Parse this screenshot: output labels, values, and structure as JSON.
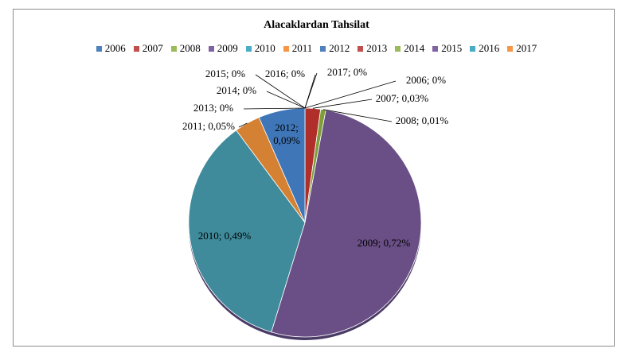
{
  "chart_data": {
    "type": "pie",
    "title": "Alacaklardan Tahsilat",
    "legend_position": "top",
    "categories": [
      "2006",
      "2007",
      "2008",
      "2009",
      "2010",
      "2011",
      "2012",
      "2013",
      "2014",
      "2015",
      "2016",
      "2017"
    ],
    "values": [
      0,
      0.03,
      0.01,
      0.72,
      0.49,
      0.05,
      0.09,
      0,
      0,
      0,
      0,
      0
    ],
    "value_labels": [
      "0%",
      "0,03%",
      "0,01%",
      "0,72%",
      "0,49%",
      "0,05%",
      "0,09%",
      "0%",
      "0%",
      "0%",
      "0%",
      "0%"
    ],
    "data_labels": [
      "2006; 0%",
      "2007; 0,03%",
      "2008; 0,01%",
      "2009; 0,72%",
      "2010; 0,49%",
      "2011; 0,05%",
      "2012; 0,09%",
      "2013; 0%",
      "2014; 0%",
      "2015; 0%",
      "2016; 0%",
      "2017; 0%"
    ],
    "colors": [
      "#4f81bd",
      "#c0504d",
      "#9bbb59",
      "#8064a2",
      "#4bacc6",
      "#f79646",
      "#4f81bd",
      "#c0504d",
      "#9bbb59",
      "#8064a2",
      "#4bacc6",
      "#f79646"
    ],
    "slice_colors": [
      "#3f6aa0",
      "#b02f2a",
      "#7f9e3a",
      "#6a4f86",
      "#3f8b9b",
      "#d58133",
      "#3f76b8",
      "#b02f2a",
      "#7f9e3a",
      "#6a4f86",
      "#3f8b9b",
      "#d58133"
    ]
  }
}
